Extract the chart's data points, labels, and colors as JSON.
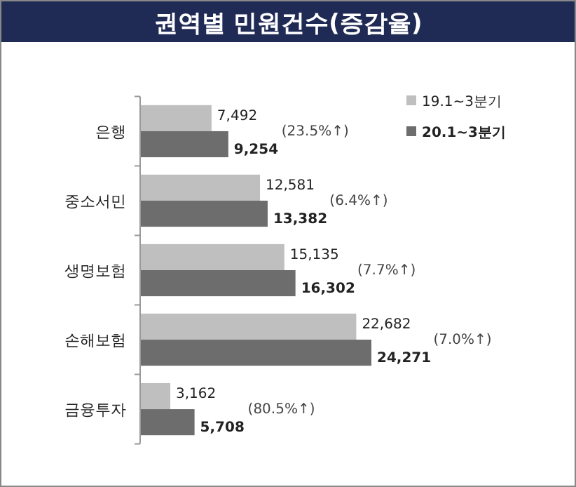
{
  "chart_data": {
    "type": "bar",
    "orientation": "horizontal",
    "title": "권역별 민원건수(증감율)",
    "categories": [
      "은행",
      "중소서민",
      "생명보험",
      "손해보험",
      "금융투자"
    ],
    "series": [
      {
        "name": "19.1~3분기",
        "color": "#bfbfbf",
        "values": [
          7492,
          12581,
          15135,
          22682,
          3162
        ],
        "value_labels": [
          "7,492",
          "12,581",
          "15,135",
          "22,682",
          "3,162"
        ]
      },
      {
        "name": "20.1~3분기",
        "color": "#6d6d6d",
        "values": [
          9254,
          13382,
          16302,
          24271,
          5708
        ],
        "value_labels": [
          "9,254",
          "13,382",
          "16,302",
          "24,271",
          "5,708"
        ]
      }
    ],
    "tick_labels": "y",
    "legend": "top right",
    "annotations": [
      "(23.5%↑)",
      "(6.4%↑)",
      "(7.7%↑)",
      "(7.0%↑)",
      "(80.5%↑)"
    ]
  }
}
